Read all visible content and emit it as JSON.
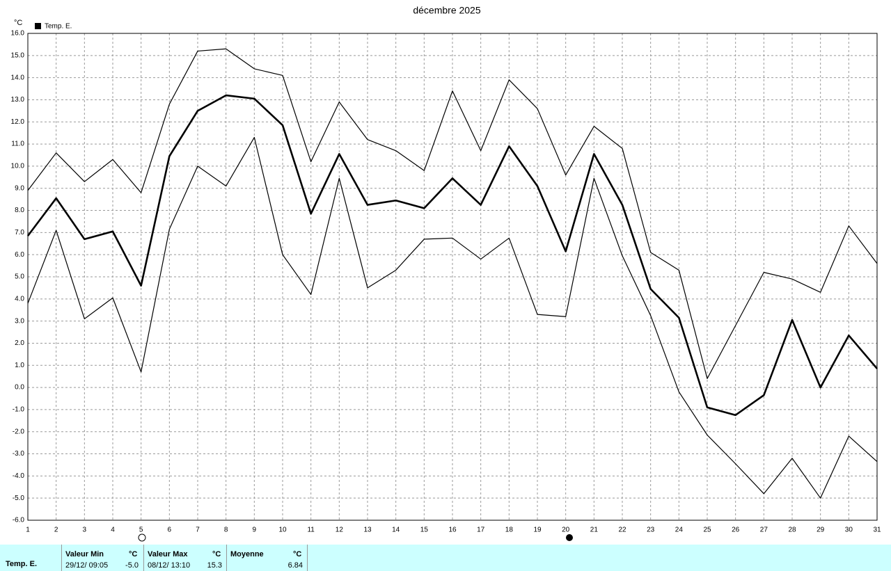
{
  "chart_data": {
    "type": "line",
    "title": "décembre 2025",
    "y_unit": "°C",
    "x": [
      1,
      2,
      3,
      4,
      5,
      6,
      7,
      8,
      9,
      10,
      11,
      12,
      13,
      14,
      15,
      16,
      17,
      18,
      19,
      20,
      21,
      22,
      23,
      24,
      25,
      26,
      27,
      28,
      29,
      30,
      31
    ],
    "series": [
      {
        "name": "Temp. E.",
        "color": "#000000",
        "values": [
          6.85,
          8.55,
          6.7,
          7.05,
          4.6,
          10.45,
          12.5,
          13.2,
          13.05,
          11.85,
          7.85,
          10.55,
          8.25,
          8.45,
          8.1,
          9.45,
          8.25,
          10.9,
          9.1,
          6.15,
          10.55,
          8.25,
          4.45,
          3.15,
          -0.9,
          -1.25,
          -0.35,
          3.05,
          0.0,
          2.35,
          0.85
        ],
        "upper": [
          8.9,
          10.6,
          9.3,
          10.3,
          8.8,
          12.8,
          15.2,
          15.3,
          14.4,
          14.1,
          10.2,
          12.9,
          11.2,
          10.7,
          9.8,
          13.4,
          10.7,
          13.9,
          12.6,
          9.6,
          11.8,
          10.8,
          6.1,
          5.3,
          0.4,
          2.8,
          5.2,
          4.9,
          4.3,
          7.3,
          5.6
        ],
        "lower": [
          3.8,
          7.1,
          3.1,
          4.05,
          0.7,
          7.15,
          10.0,
          9.1,
          11.3,
          6.0,
          4.2,
          9.45,
          4.5,
          5.3,
          6.7,
          6.75,
          5.8,
          6.75,
          3.3,
          3.2,
          9.45,
          5.95,
          3.25,
          -0.2,
          -2.15,
          -3.45,
          -4.8,
          -3.2,
          -5.0,
          -2.2,
          -3.35
        ]
      }
    ],
    "xlim": [
      1,
      31
    ],
    "ylim": [
      -6,
      16
    ],
    "xticks": [
      1,
      2,
      3,
      4,
      5,
      6,
      7,
      8,
      9,
      10,
      11,
      12,
      13,
      14,
      15,
      16,
      17,
      18,
      19,
      20,
      21,
      22,
      23,
      24,
      25,
      26,
      27,
      28,
      29,
      30,
      31
    ],
    "yticks": [
      {
        "value": 16,
        "label": "16.0"
      },
      {
        "value": 15,
        "label": "15.0"
      },
      {
        "value": 14,
        "label": "14.0"
      },
      {
        "value": 13,
        "label": "13.0"
      },
      {
        "value": 12,
        "label": "12.0"
      },
      {
        "value": 11,
        "label": "11.0"
      },
      {
        "value": 10,
        "label": "10.0"
      },
      {
        "value": 9,
        "label": "9.0"
      },
      {
        "value": 8,
        "label": "8.0"
      },
      {
        "value": 7,
        "label": "7.0"
      },
      {
        "value": 6,
        "label": "6.0"
      },
      {
        "value": 5,
        "label": "5.0"
      },
      {
        "value": 4,
        "label": "4.0"
      },
      {
        "value": 3,
        "label": "3.0"
      },
      {
        "value": 2,
        "label": "2.0"
      },
      {
        "value": 1,
        "label": "1.0"
      },
      {
        "value": 0,
        "label": "0.0"
      },
      {
        "value": -1,
        "label": "-1.0"
      },
      {
        "value": -2,
        "label": "-2.0"
      },
      {
        "value": -3,
        "label": "-3.0"
      },
      {
        "value": -4,
        "label": "-4.0"
      },
      {
        "value": -5,
        "label": "-5.0"
      },
      {
        "value": -6,
        "label": "-6.0"
      }
    ],
    "grid": true
  },
  "stats": {
    "row_label": "Temp. E.",
    "columns": [
      {
        "header": "Valeur Min",
        "unit": "°C",
        "time": "29/12/ 09:05",
        "value": "-5.0"
      },
      {
        "header": "Valeur Max",
        "unit": "°C",
        "time": "08/12/ 13:10",
        "value": "15.3"
      },
      {
        "header": "Moyenne",
        "unit": "°C",
        "time": "",
        "value": "6.84"
      }
    ]
  }
}
